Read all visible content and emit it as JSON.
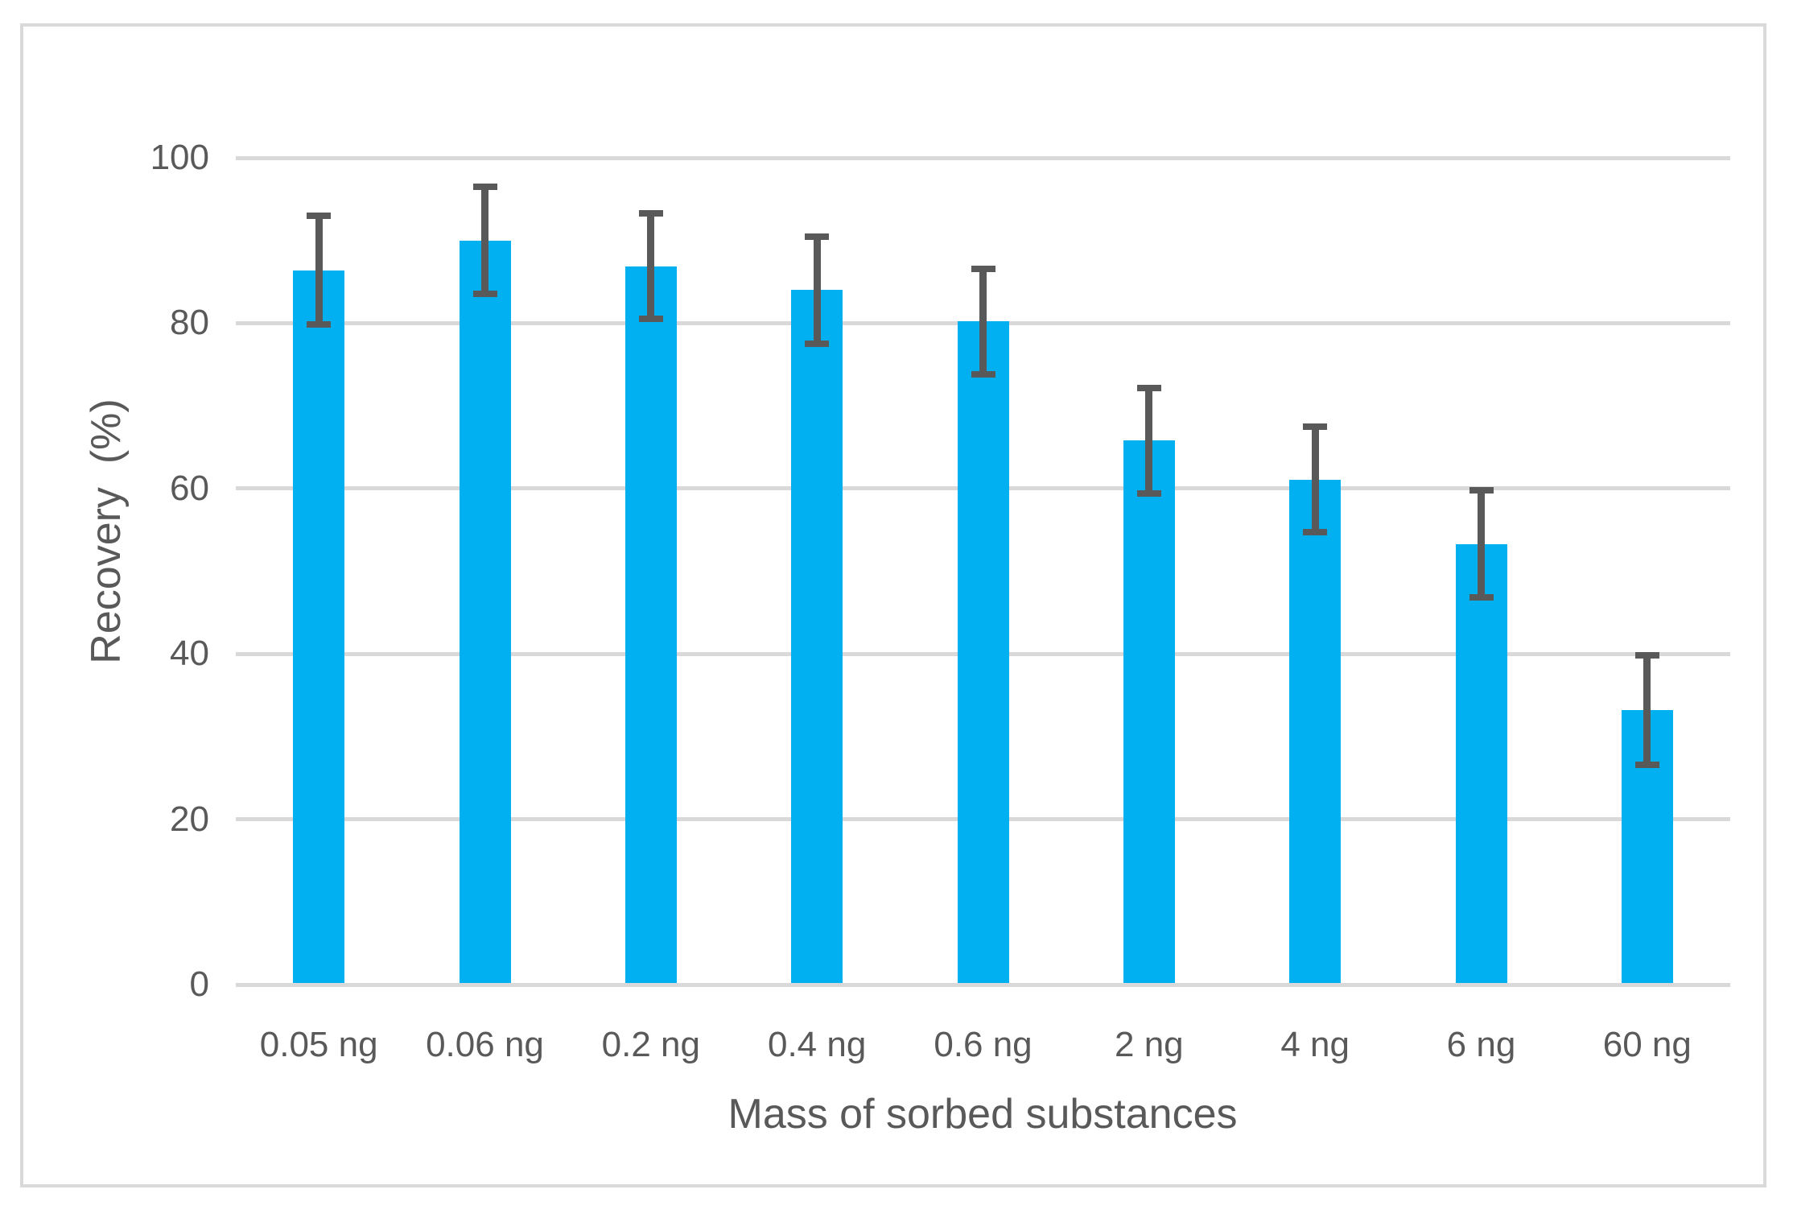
{
  "chart_data": {
    "type": "bar",
    "title": "",
    "categories": [
      "0.05 ng",
      "0.06 ng",
      "0.2 ng",
      "0.4 ng",
      "0.6 ng",
      "2 ng",
      "4 ng",
      "6 ng",
      "60 ng"
    ],
    "series": [
      {
        "name": "Recovery",
        "values": [
          86.4,
          90.0,
          86.9,
          84.0,
          80.2,
          65.8,
          61.1,
          53.3,
          33.2
        ],
        "errors": [
          6.6,
          6.5,
          6.4,
          6.5,
          6.4,
          6.4,
          6.4,
          6.5,
          6.6
        ]
      }
    ],
    "values": [
      86.4,
      90.0,
      86.9,
      84.0,
      80.2,
      65.8,
      61.1,
      53.3,
      33.2
    ],
    "errors": [
      6.6,
      6.5,
      6.4,
      6.5,
      6.4,
      6.4,
      6.4,
      6.5,
      6.6
    ],
    "xlabel": "Mass of sorbed substances",
    "ylabel": "Recovery  (%)",
    "yticks": [
      0,
      20,
      40,
      60,
      80,
      100
    ],
    "ylim": [
      0,
      100
    ],
    "grid": "horizontal",
    "legend": "none",
    "error_bars": "symmetric-vertical",
    "bar_color": "#00B0F0",
    "error_bar_color": "#595959",
    "gridline_color": "#D9D9D9",
    "axis_line_color": "#D9D9D9",
    "text_color": "#595959",
    "frame_border_color": "#D9D9D9",
    "background_color": "#FFFFFF"
  }
}
